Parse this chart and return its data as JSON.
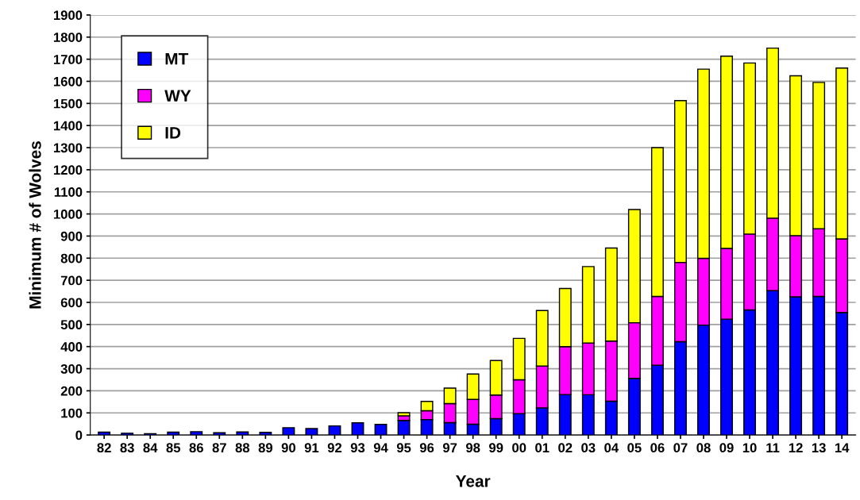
{
  "chart_data": {
    "type": "bar",
    "stacked": true,
    "xlabel": "Year",
    "ylabel": "Minimum # of Wolves",
    "categories": [
      "82",
      "83",
      "84",
      "85",
      "86",
      "87",
      "88",
      "89",
      "90",
      "91",
      "92",
      "93",
      "94",
      "95",
      "96",
      "97",
      "98",
      "99",
      "00",
      "01",
      "02",
      "03",
      "04",
      "05",
      "06",
      "07",
      "08",
      "09",
      "10",
      "11",
      "12",
      "13",
      "14"
    ],
    "series": [
      {
        "name": "MT",
        "color": "#0000ff",
        "values": [
          13,
          8,
          6,
          13,
          15,
          10,
          14,
          12,
          33,
          29,
          41,
          55,
          48,
          66,
          70,
          56,
          49,
          74,
          97,
          123,
          183,
          182,
          153,
          256,
          316,
          422,
          497,
          524,
          566,
          653,
          625,
          627,
          554
        ]
      },
      {
        "name": "WY",
        "color": "#ff00ff",
        "values": [
          null,
          null,
          null,
          null,
          null,
          null,
          null,
          null,
          null,
          null,
          null,
          null,
          null,
          21,
          40,
          86,
          112,
          107,
          153,
          189,
          217,
          234,
          272,
          252,
          311,
          359,
          302,
          320,
          343,
          328,
          277,
          306,
          333
        ]
      },
      {
        "name": "ID",
        "color": "#ffff00",
        "values": [
          null,
          null,
          null,
          null,
          null,
          null,
          null,
          null,
          null,
          null,
          null,
          null,
          null,
          14,
          42,
          70,
          115,
          156,
          187,
          251,
          263,
          346,
          421,
          512,
          673,
          732,
          856,
          870,
          774,
          769,
          723,
          662,
          773
        ]
      }
    ],
    "ylim": [
      0,
      1900
    ],
    "yticks": [
      0,
      100,
      200,
      300,
      400,
      500,
      600,
      700,
      800,
      900,
      1000,
      1100,
      1200,
      1300,
      1400,
      1500,
      1600,
      1700,
      1800,
      1900
    ],
    "grid": "y",
    "legend": "top left"
  }
}
